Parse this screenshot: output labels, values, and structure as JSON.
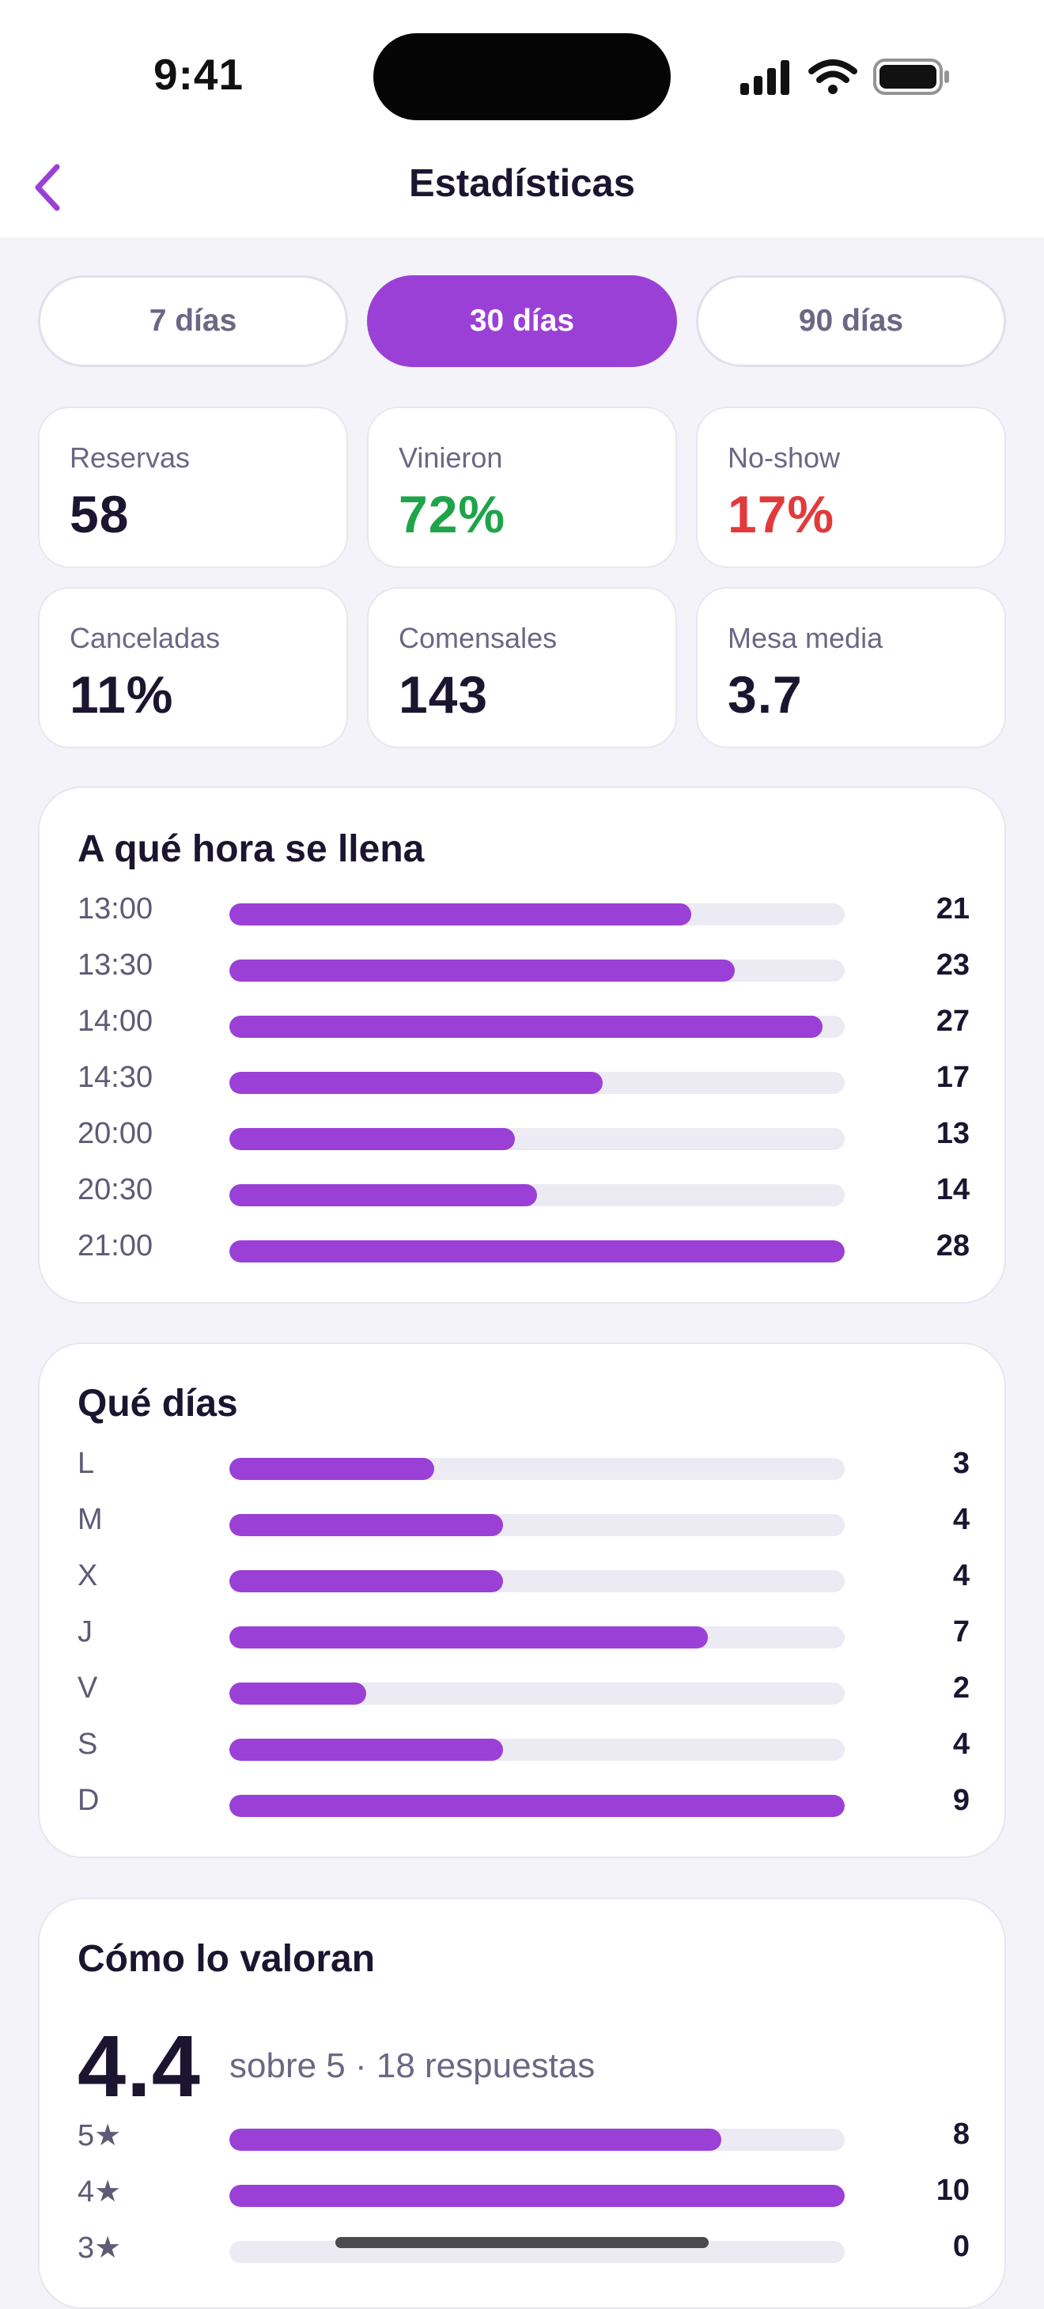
{
  "status_bar": {
    "time": "9:41"
  },
  "header": {
    "title": "Estadísticas"
  },
  "period_tabs": [
    {
      "label": "7 días",
      "selected": false
    },
    {
      "label": "30 días",
      "selected": true
    },
    {
      "label": "90 días",
      "selected": false
    }
  ],
  "kpis": [
    {
      "label": "Reservas",
      "value": "58",
      "tone": "default"
    },
    {
      "label": "Vinieron",
      "value": "72%",
      "tone": "green"
    },
    {
      "label": "No-show",
      "value": "17%",
      "tone": "red"
    },
    {
      "label": "Canceladas",
      "value": "11%",
      "tone": "default"
    },
    {
      "label": "Comensales",
      "value": "143",
      "tone": "default"
    },
    {
      "label": "Mesa media",
      "value": "3.7",
      "tone": "default"
    }
  ],
  "hours": {
    "title": "A qué hora se llena",
    "rows": [
      {
        "label": "13:00",
        "value": 21
      },
      {
        "label": "13:30",
        "value": 23
      },
      {
        "label": "14:00",
        "value": 27
      },
      {
        "label": "14:30",
        "value": 17
      },
      {
        "label": "20:00",
        "value": 13
      },
      {
        "label": "20:30",
        "value": 14
      },
      {
        "label": "21:00",
        "value": 28
      }
    ]
  },
  "days": {
    "title": "Qué días",
    "rows": [
      {
        "label": "L",
        "value": 3
      },
      {
        "label": "M",
        "value": 4
      },
      {
        "label": "X",
        "value": 4
      },
      {
        "label": "J",
        "value": 7
      },
      {
        "label": "V",
        "value": 2
      },
      {
        "label": "S",
        "value": 4
      },
      {
        "label": "D",
        "value": 9
      }
    ]
  },
  "ratings": {
    "title": "Cómo lo valoran",
    "score": "4.4",
    "subtitle": "sobre 5 · 18 respuestas",
    "rows": [
      {
        "label": "5★",
        "value": 8
      },
      {
        "label": "4★",
        "value": 10
      },
      {
        "label": "3★",
        "value": 0
      }
    ]
  },
  "colors": {
    "accent": "#9B40D6",
    "positive": "#1FA44A",
    "negative": "#E23A3A",
    "background": "#F4F3F9"
  },
  "icons": {
    "back": "chevron-left-icon",
    "signal": "cellular-signal-icon",
    "wifi": "wifi-icon",
    "battery": "battery-icon"
  }
}
